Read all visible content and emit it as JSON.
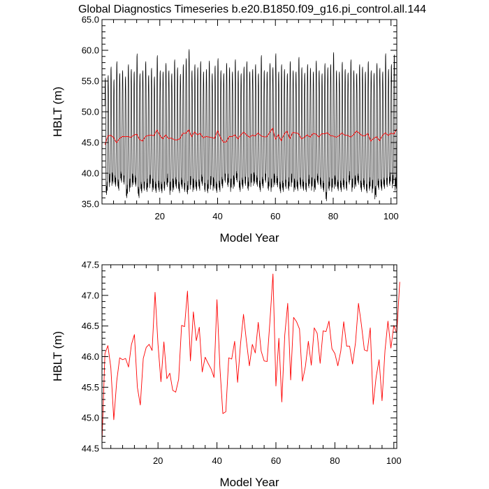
{
  "title": "Global Diagnostics Timeseries b.e20.B1850.f09_g16.pi_control.all.144",
  "chart_data": [
    {
      "type": "line",
      "xlabel": "Model Year",
      "ylabel": "HBLT (m)",
      "xlim": [
        0,
        102
      ],
      "ylim": [
        35,
        65
      ],
      "xticks": [
        "20",
        "40",
        "60",
        "80",
        "100"
      ],
      "yticks": [
        "35.0",
        "40.0",
        "45.0",
        "50.0",
        "55.0",
        "60.0",
        "65.0"
      ],
      "grid": false,
      "series": [
        {
          "color": "#000000",
          "monthly": true,
          "annual_max": [
            55.8,
            56.2,
            57.6,
            55.5,
            58.5,
            56.5,
            57.0,
            56.0,
            58.0,
            57.2,
            56.8,
            59.8,
            56.5,
            57.0,
            58.5,
            56.2,
            57.4,
            56.0,
            59.5,
            57.0,
            56.8,
            58.2,
            57.0,
            56.5,
            58.8,
            57.5,
            56.4,
            58.0,
            59.0,
            60.5,
            57.0,
            58.0,
            57.5,
            58.5,
            56.8,
            57.2,
            58.6,
            56.5,
            57.8,
            59.0,
            57.0,
            56.5,
            58.2,
            57.5,
            56.8,
            58.8,
            57.0,
            56.5,
            57.6,
            58.5,
            56.8,
            57.2,
            58.0,
            56.5,
            59.5,
            57.0,
            56.8,
            58.2,
            57.5,
            59.8,
            56.8,
            58.0,
            57.2,
            56.5,
            58.5,
            57.0,
            56.8,
            59.2,
            57.5,
            56.6,
            58.0,
            57.4,
            56.8,
            58.6,
            57.0,
            56.5,
            58.2,
            57.5,
            58.0,
            60.0,
            57.0,
            56.8,
            58.4,
            57.2,
            56.6,
            58.8,
            57.0,
            56.5,
            58.0,
            57.6,
            56.8,
            58.5,
            57.0,
            56.6,
            58.2,
            57.4,
            56.8,
            59.8,
            57.2,
            58.0,
            59.6
          ],
          "annual_min": [
            36.5,
            37.8,
            38.0,
            37.5,
            37.2,
            38.5,
            38.2,
            36.0,
            37.0,
            37.8,
            37.5,
            36.0,
            36.8,
            37.2,
            37.0,
            37.6,
            37.0,
            36.5,
            37.0,
            36.8,
            37.2,
            37.8,
            36.5,
            37.0,
            37.2,
            36.8,
            37.5,
            37.0,
            36.6,
            37.4,
            37.0,
            36.8,
            37.2,
            38.0,
            37.0,
            36.8,
            37.4,
            37.2,
            36.5,
            37.0,
            37.6,
            38.5,
            37.8,
            37.0,
            37.5,
            38.2,
            37.0,
            37.5,
            38.0,
            37.2,
            37.8,
            38.0,
            37.5,
            37.0,
            37.6,
            38.5,
            37.2,
            37.0,
            37.8,
            37.4,
            36.8,
            37.0,
            37.5,
            37.2,
            37.8,
            37.0,
            36.8,
            37.5,
            37.2,
            37.0,
            37.6,
            37.2,
            37.0,
            37.8,
            37.5,
            37.0,
            35.5,
            37.2,
            37.0,
            37.5,
            36.8,
            37.0,
            37.4,
            37.2,
            38.2,
            37.0,
            37.5,
            37.8,
            37.0,
            37.4,
            36.8,
            37.2,
            36.8,
            35.8,
            37.0,
            37.2,
            37.5,
            37.8,
            38.0,
            37.6,
            37.2
          ]
        },
        {
          "color": "#ff0000",
          "values": [
            44.6,
            46.05,
            46.18,
            45.82,
            44.97,
            45.6,
            45.98,
            45.95,
            45.97,
            45.83,
            46.2,
            46.36,
            45.5,
            45.21,
            45.97,
            46.15,
            46.2,
            46.1,
            47.05,
            46.2,
            45.59,
            46.24,
            45.64,
            45.73,
            45.45,
            45.42,
            45.63,
            46.51,
            46.49,
            47.07,
            45.93,
            46.73,
            46.26,
            46.48,
            45.75,
            45.99,
            45.89,
            45.8,
            45.66,
            46.93,
            45.82,
            45.07,
            45.1,
            45.98,
            45.96,
            46.25,
            45.58,
            46.21,
            46.69,
            46.25,
            45.85,
            46.2,
            46.06,
            46.56,
            46.09,
            45.93,
            45.92,
            46.6,
            47.35,
            45.52,
            46.3,
            45.26,
            46.35,
            46.87,
            45.62,
            46.64,
            46.57,
            46.45,
            45.6,
            45.84,
            46.25,
            45.86,
            46.47,
            46.38,
            45.89,
            46.42,
            46.41,
            46.58,
            46.13,
            46.05,
            45.85,
            46.09,
            46.57,
            46.17,
            46.17,
            45.88,
            46.23,
            46.87,
            46.52,
            46.11,
            46.09,
            46.47,
            45.22,
            45.67,
            45.95,
            45.28,
            46.1,
            46.58,
            46.14,
            46.51,
            46.38,
            47.22
          ]
        }
      ]
    },
    {
      "type": "line",
      "xlabel": "Model Year",
      "ylabel": "HBLT (m)",
      "xlim": [
        1,
        101
      ],
      "ylim": [
        44.5,
        47.5
      ],
      "xticks": [
        "20",
        "40",
        "60",
        "80",
        "100"
      ],
      "yticks": [
        "44.5",
        "45.0",
        "45.5",
        "46.0",
        "46.5",
        "47.0",
        "47.5"
      ],
      "grid": false,
      "series": [
        {
          "color": "#ff0000",
          "values": [
            44.6,
            46.05,
            46.18,
            45.82,
            44.97,
            45.6,
            45.98,
            45.95,
            45.97,
            45.83,
            46.2,
            46.36,
            45.5,
            45.21,
            45.97,
            46.15,
            46.2,
            46.1,
            47.05,
            46.2,
            45.59,
            46.24,
            45.64,
            45.73,
            45.45,
            45.42,
            45.63,
            46.51,
            46.49,
            47.07,
            45.93,
            46.73,
            46.26,
            46.48,
            45.75,
            45.99,
            45.89,
            45.8,
            45.66,
            46.93,
            45.82,
            45.07,
            45.1,
            45.98,
            45.96,
            46.25,
            45.58,
            46.21,
            46.69,
            46.25,
            45.85,
            46.2,
            46.06,
            46.56,
            46.09,
            45.93,
            45.92,
            46.6,
            47.35,
            45.52,
            46.3,
            45.26,
            46.35,
            46.87,
            45.62,
            46.64,
            46.57,
            46.45,
            45.6,
            45.84,
            46.25,
            45.86,
            46.47,
            46.38,
            45.89,
            46.42,
            46.41,
            46.58,
            46.13,
            46.05,
            45.85,
            46.09,
            46.57,
            46.17,
            46.17,
            45.88,
            46.23,
            46.87,
            46.52,
            46.11,
            46.09,
            46.47,
            45.22,
            45.67,
            45.95,
            45.28,
            46.1,
            46.58,
            46.14,
            46.51,
            46.38,
            47.22
          ]
        }
      ]
    }
  ]
}
